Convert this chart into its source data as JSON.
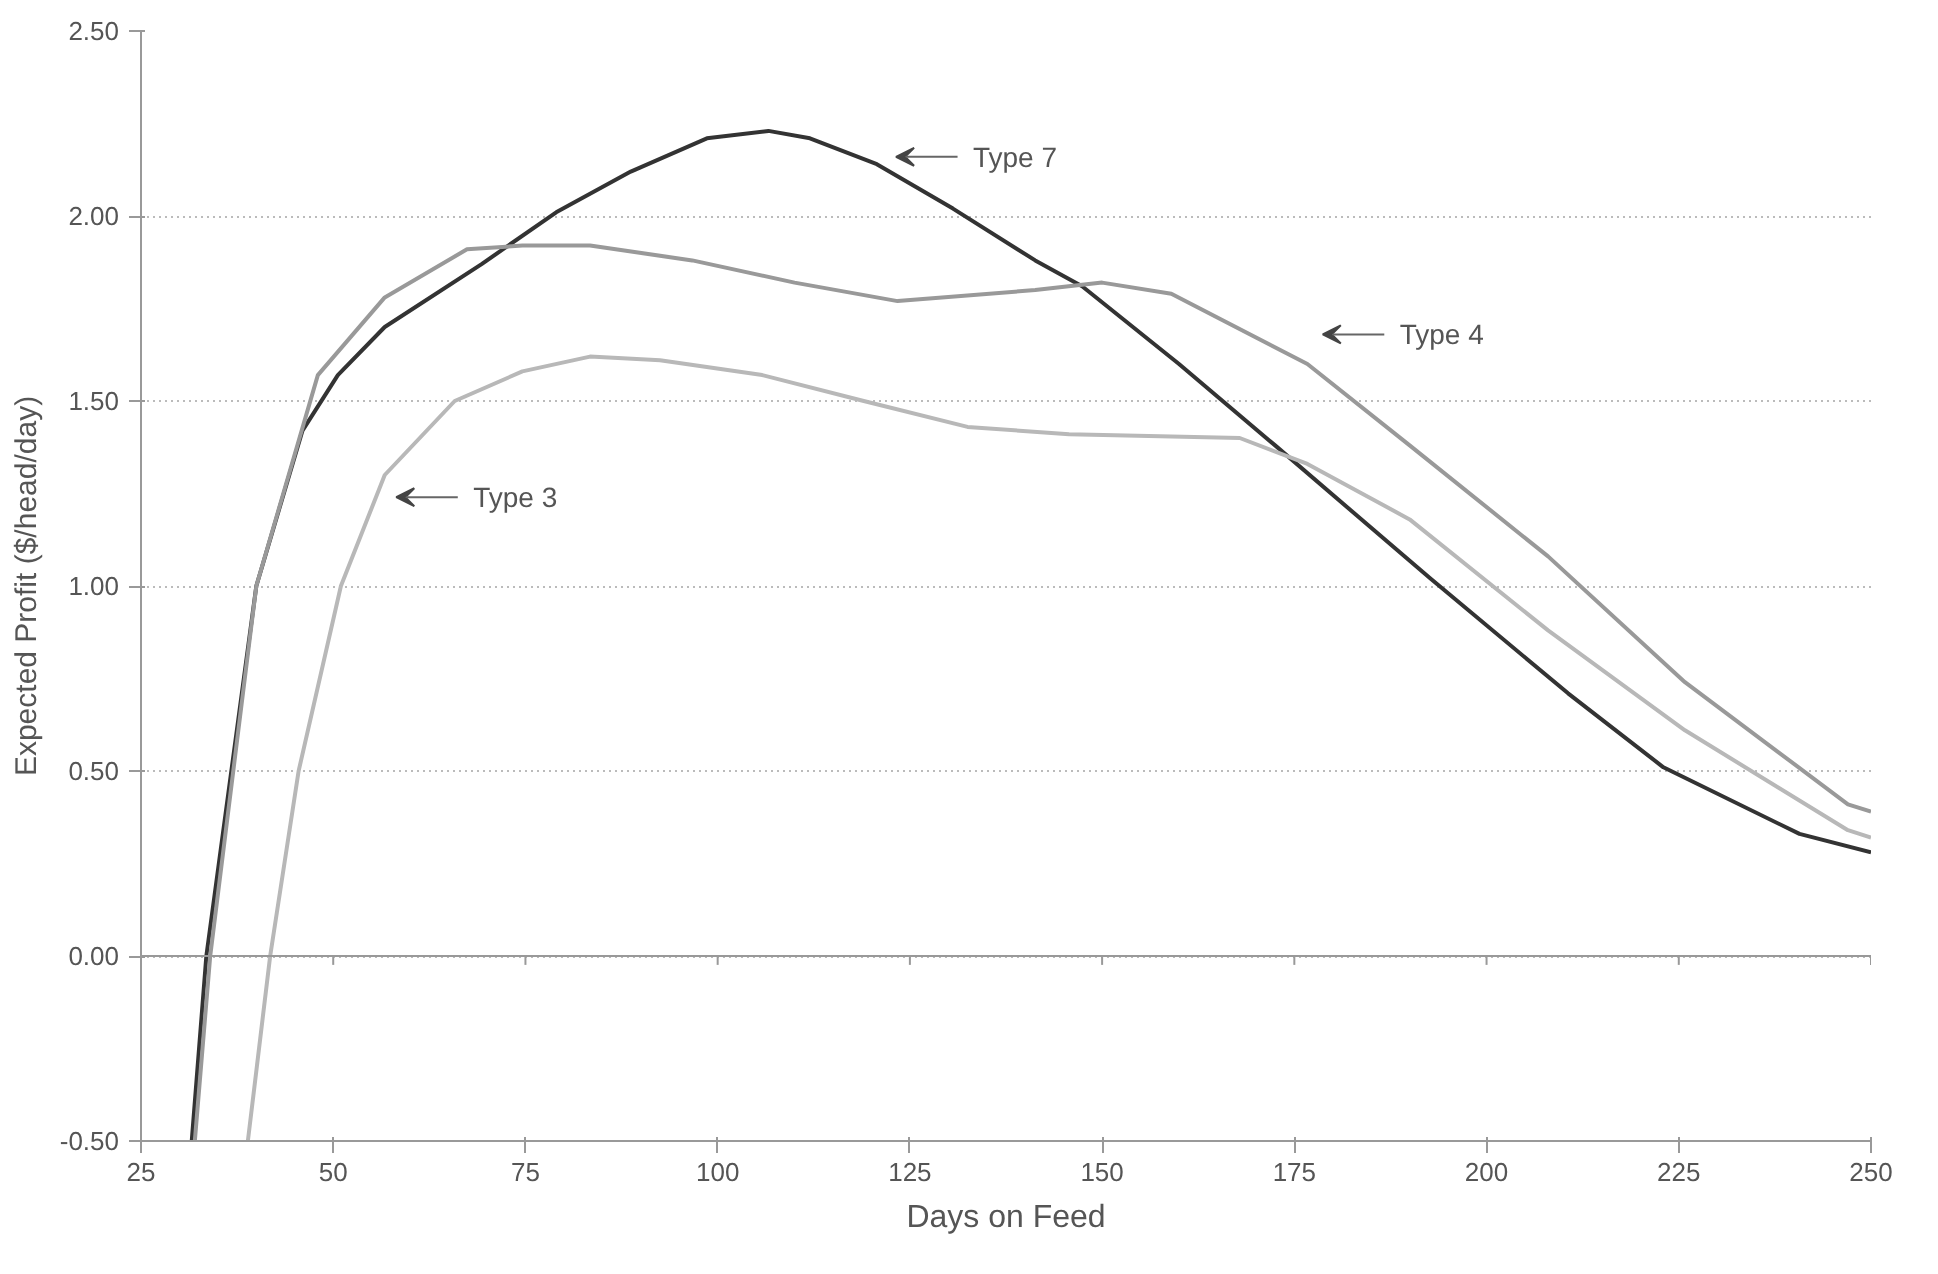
{
  "chart_data": {
    "type": "line",
    "xlabel": "Days on Feed",
    "ylabel": "Expected Profit ($/head/day)",
    "xlim": [
      25,
      250
    ],
    "ylim": [
      -0.5,
      2.5
    ],
    "xticks": [
      25,
      50,
      75,
      100,
      125,
      150,
      175,
      200,
      225,
      250
    ],
    "yticks": [
      {
        "value": -0.5,
        "label": "-0.50"
      },
      {
        "value": 0,
        "label": "0.00"
      },
      {
        "value": 0.5,
        "label": "0.50"
      },
      {
        "value": 1,
        "label": "1.00"
      },
      {
        "value": 1.5,
        "label": "1.50"
      },
      {
        "value": 2,
        "label": "2.00"
      },
      {
        "value": 2.5,
        "label": "2.50"
      }
    ],
    "grid": "y",
    "marker": "none",
    "line_style": "solid",
    "series": [
      {
        "name": "Type 7",
        "color": "#333333",
        "x": [
          31.6,
          33.5,
          40,
          46,
          50.6,
          56.7,
          69.3,
          79,
          88.7,
          98.6,
          106.6,
          112,
          120.7,
          130.6,
          141.3,
          147.4,
          160,
          172.5,
          192.7,
          210.6,
          223,
          240.7,
          250
        ],
        "values": [
          -0.5,
          0,
          1.0,
          1.42,
          1.57,
          1.7,
          1.87,
          2.01,
          2.12,
          2.21,
          2.23,
          2.21,
          2.14,
          2.02,
          1.88,
          1.81,
          1.6,
          1.38,
          1.02,
          0.71,
          0.51,
          0.33,
          0.28
        ]
      },
      {
        "name": "Type 4",
        "color": "#999999",
        "x": [
          32,
          34,
          40,
          48,
          56.7,
          67.4,
          74.6,
          83.4,
          96.7,
          110,
          123.4,
          141.3,
          150,
          159,
          176.7,
          190,
          208,
          225.8,
          247,
          250
        ],
        "values": [
          -0.5,
          0,
          1.0,
          1.57,
          1.78,
          1.91,
          1.92,
          1.92,
          1.88,
          1.82,
          1.77,
          1.8,
          1.82,
          1.79,
          1.6,
          1.38,
          1.08,
          0.74,
          0.41,
          0.39
        ]
      },
      {
        "name": "Type 3",
        "color": "#b8b8b8",
        "x": [
          38.9,
          41.8,
          45.5,
          51,
          56.7,
          65.8,
          74.6,
          83.4,
          92.5,
          105.8,
          119,
          132.5,
          145.7,
          167.9,
          176.7,
          190,
          208,
          225.8,
          247,
          250
        ],
        "values": [
          -0.5,
          0,
          0.5,
          1.0,
          1.3,
          1.5,
          1.58,
          1.62,
          1.61,
          1.57,
          1.5,
          1.43,
          1.41,
          1.4,
          1.33,
          1.18,
          0.88,
          0.61,
          0.34,
          0.32
        ]
      }
    ]
  }
}
